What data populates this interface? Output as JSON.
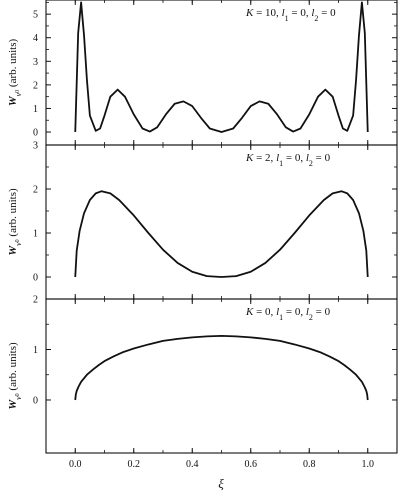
{
  "chart_data": {
    "type": "line",
    "xlabel": "ξ",
    "x_ticks": [
      "0.0",
      "0.2",
      "0.4",
      "0.6",
      "0.8",
      "1.0"
    ],
    "xlim": [
      -0.1,
      1.1
    ],
    "panels": [
      {
        "annotation_parts": [
          {
            "text": "K",
            "style": "italic"
          },
          {
            "text": " = 10, ",
            "style": "normal"
          },
          {
            "text": "l",
            "style": "italic"
          },
          {
            "text": "1",
            "style": "sub"
          },
          {
            "text": " = 0, ",
            "style": "normal"
          },
          {
            "text": "l",
            "style": "italic"
          },
          {
            "text": "2",
            "style": "sub"
          },
          {
            "text": " = 0",
            "style": "normal"
          }
        ],
        "ylabel_main": "W",
        "ylabel_sub": "ν",
        "ylabel_subsub": "0",
        "ylabel_rest": " (arb. units)",
        "ylim": [
          -0.55,
          5.6
        ],
        "y_ticks": [
          "0",
          "1",
          "2",
          "3",
          "4",
          "5"
        ],
        "series": [
          {
            "points": [
              [
                0.0,
                0.0
              ],
              [
                0.01,
                4.2
              ],
              [
                0.02,
                5.5
              ],
              [
                0.03,
                4.1
              ],
              [
                0.04,
                2.2
              ],
              [
                0.05,
                0.7
              ],
              [
                0.07,
                0.05
              ],
              [
                0.085,
                0.15
              ],
              [
                0.1,
                0.7
              ],
              [
                0.12,
                1.5
              ],
              [
                0.145,
                1.8
              ],
              [
                0.17,
                1.5
              ],
              [
                0.2,
                0.75
              ],
              [
                0.23,
                0.15
              ],
              [
                0.255,
                0.02
              ],
              [
                0.28,
                0.2
              ],
              [
                0.31,
                0.75
              ],
              [
                0.34,
                1.2
              ],
              [
                0.37,
                1.3
              ],
              [
                0.4,
                1.1
              ],
              [
                0.43,
                0.6
              ],
              [
                0.46,
                0.15
              ],
              [
                0.5,
                0.0
              ],
              [
                0.54,
                0.15
              ],
              [
                0.57,
                0.6
              ],
              [
                0.6,
                1.1
              ],
              [
                0.63,
                1.3
              ],
              [
                0.66,
                1.2
              ],
              [
                0.69,
                0.75
              ],
              [
                0.72,
                0.2
              ],
              [
                0.745,
                0.02
              ],
              [
                0.77,
                0.15
              ],
              [
                0.8,
                0.75
              ],
              [
                0.83,
                1.5
              ],
              [
                0.855,
                1.8
              ],
              [
                0.88,
                1.5
              ],
              [
                0.9,
                0.7
              ],
              [
                0.915,
                0.15
              ],
              [
                0.93,
                0.05
              ],
              [
                0.95,
                0.7
              ],
              [
                0.96,
                2.2
              ],
              [
                0.97,
                4.1
              ],
              [
                0.98,
                5.5
              ],
              [
                0.99,
                4.2
              ],
              [
                1.0,
                0.0
              ]
            ]
          }
        ]
      },
      {
        "annotation_parts": [
          {
            "text": "K",
            "style": "italic"
          },
          {
            "text": " = 2, ",
            "style": "normal"
          },
          {
            "text": "l",
            "style": "italic"
          },
          {
            "text": "1",
            "style": "sub"
          },
          {
            "text": " = 0, ",
            "style": "normal"
          },
          {
            "text": "l",
            "style": "italic"
          },
          {
            "text": "2",
            "style": "sub"
          },
          {
            "text": " = 0",
            "style": "normal"
          }
        ],
        "ylabel_main": "W",
        "ylabel_sub": "ν",
        "ylabel_subsub": "0",
        "ylabel_rest": " (arb. units)",
        "ylim": [
          -0.5,
          3.0
        ],
        "y_ticks": [
          "0",
          "1",
          "2",
          "3"
        ],
        "series": [
          {
            "points": [
              [
                0.0,
                0.0
              ],
              [
                0.005,
                0.6
              ],
              [
                0.015,
                1.05
              ],
              [
                0.03,
                1.45
              ],
              [
                0.05,
                1.75
              ],
              [
                0.07,
                1.9
              ],
              [
                0.09,
                1.95
              ],
              [
                0.12,
                1.9
              ],
              [
                0.15,
                1.75
              ],
              [
                0.2,
                1.4
              ],
              [
                0.25,
                1.0
              ],
              [
                0.3,
                0.62
              ],
              [
                0.35,
                0.32
              ],
              [
                0.4,
                0.12
              ],
              [
                0.45,
                0.02
              ],
              [
                0.5,
                0.0
              ],
              [
                0.55,
                0.02
              ],
              [
                0.6,
                0.12
              ],
              [
                0.65,
                0.32
              ],
              [
                0.7,
                0.62
              ],
              [
                0.75,
                1.0
              ],
              [
                0.8,
                1.4
              ],
              [
                0.85,
                1.75
              ],
              [
                0.88,
                1.9
              ],
              [
                0.91,
                1.95
              ],
              [
                0.93,
                1.9
              ],
              [
                0.95,
                1.75
              ],
              [
                0.97,
                1.45
              ],
              [
                0.985,
                1.05
              ],
              [
                0.995,
                0.6
              ],
              [
                1.0,
                0.0
              ]
            ]
          }
        ]
      },
      {
        "annotation_parts": [
          {
            "text": "K",
            "style": "italic"
          },
          {
            "text": " = 0, ",
            "style": "normal"
          },
          {
            "text": "l",
            "style": "italic"
          },
          {
            "text": "1",
            "style": "sub"
          },
          {
            "text": " = 0, ",
            "style": "normal"
          },
          {
            "text": "l",
            "style": "italic"
          },
          {
            "text": "2",
            "style": "sub"
          },
          {
            "text": " = 0",
            "style": "normal"
          }
        ],
        "ylabel_main": "W",
        "ylabel_sub": "ν",
        "ylabel_subsub": "0",
        "ylabel_rest": " (arb. units)",
        "ylim": [
          -1.05,
          2.0
        ],
        "y_ticks": [
          "0",
          "1",
          "2"
        ],
        "series": [
          {
            "points": [
              [
                0.0,
                0.0
              ],
              [
                0.002,
                0.11
              ],
              [
                0.005,
                0.18
              ],
              [
                0.01,
                0.25
              ],
              [
                0.02,
                0.36
              ],
              [
                0.04,
                0.5
              ],
              [
                0.06,
                0.6
              ],
              [
                0.08,
                0.69
              ],
              [
                0.1,
                0.77
              ],
              [
                0.13,
                0.86
              ],
              [
                0.16,
                0.94
              ],
              [
                0.2,
                1.02
              ],
              [
                0.25,
                1.1
              ],
              [
                0.3,
                1.17
              ],
              [
                0.35,
                1.21
              ],
              [
                0.4,
                1.24
              ],
              [
                0.45,
                1.26
              ],
              [
                0.5,
                1.27
              ],
              [
                0.55,
                1.26
              ],
              [
                0.6,
                1.24
              ],
              [
                0.65,
                1.21
              ],
              [
                0.7,
                1.17
              ],
              [
                0.75,
                1.1
              ],
              [
                0.8,
                1.02
              ],
              [
                0.84,
                0.94
              ],
              [
                0.87,
                0.86
              ],
              [
                0.9,
                0.77
              ],
              [
                0.92,
                0.69
              ],
              [
                0.94,
                0.6
              ],
              [
                0.96,
                0.5
              ],
              [
                0.98,
                0.36
              ],
              [
                0.99,
                0.25
              ],
              [
                0.995,
                0.18
              ],
              [
                0.998,
                0.11
              ],
              [
                1.0,
                0.0
              ]
            ]
          }
        ]
      }
    ]
  }
}
